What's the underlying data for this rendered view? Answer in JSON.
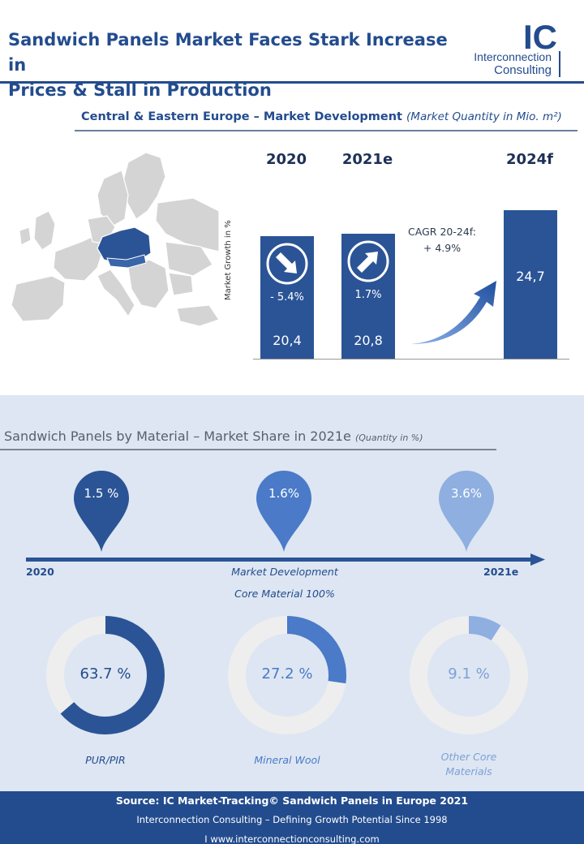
{
  "header": {
    "title_line1": "Sandwich Panels Market Faces Stark Increase in",
    "title_line2": "Prices & Stall in Production",
    "logo_mark": "IC",
    "logo_line1": "Interconnection",
    "logo_line2": "Consulting"
  },
  "section1": {
    "title": "Central & Eastern  Europe – Market Development ",
    "subtitle": "(Market Quantity in Mio. m²)",
    "cagr_line1": "CAGR 20-24f:",
    "cagr_line2": "+ 4.9%"
  },
  "section2": {
    "title": "Sandwich Panels by Material – Market Share in 2021e ",
    "subtitle": "(Quantity  in %)",
    "timeline_start": "2020",
    "timeline_end": "2021e",
    "timeline_mid1": "Market Development",
    "timeline_mid2": "Core Material 100%",
    "pins": [
      {
        "label": "1.5 %",
        "color": "#2b5496"
      },
      {
        "label": "1.6%",
        "color": "#4a7ac8"
      },
      {
        "label": "3.6%",
        "color": "#8eafe0"
      }
    ]
  },
  "footer": {
    "line1": "Source: IC Market-Tracking© Sandwich Panels in Europe 2021",
    "line2": "Interconnection Consulting – Defining Growth Potential Since 1998",
    "line3": "I  www.interconnectionconsulting.com"
  },
  "chart_data": [
    {
      "type": "bar",
      "title": "Central & Eastern  Europe – Market Development (Market Quantity in Mio. m²)",
      "ylabel": "Market Growth in %",
      "categories": [
        "2020",
        "2021e",
        "2024f"
      ],
      "values": [
        20.4,
        20.8,
        24.7
      ],
      "value_labels": [
        "20,4",
        "20,8",
        "24,7"
      ],
      "growth_labels": [
        "- 5.4%",
        "1.7%",
        ""
      ],
      "growth_direction": [
        "down",
        "up",
        ""
      ],
      "ylim": [
        0,
        26
      ],
      "colors": {
        "bar": "#2b5496"
      }
    },
    {
      "type": "pie",
      "title": "Market Share in 2021e",
      "slices": [
        {
          "label": "PUR/PIR",
          "value": 63.7,
          "value_label": "63.7 %",
          "color": "#2b5496",
          "text_color": "#234c8e"
        },
        {
          "label": "Mineral Wool",
          "value": 27.2,
          "value_label": "27.2 %",
          "color": "#4a7ac8",
          "text_color": "#4a7ac8"
        },
        {
          "label": "Other Core Materials",
          "value": 9.1,
          "value_label": "9.1 %",
          "color": "#8eafe0",
          "text_color": "#7ea0d8"
        }
      ]
    }
  ]
}
